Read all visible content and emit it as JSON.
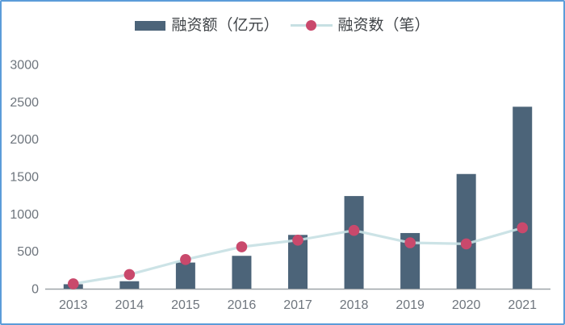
{
  "legend": {
    "bar_label": "融资额（亿元）",
    "line_label": "融资数（笔）"
  },
  "colors": {
    "bar": "#4C6479",
    "line": "#C7E0E3",
    "dot": "#C9496C",
    "axis_line": "#9DA3A8",
    "axis_text": "#6E757D",
    "legend_text": "#414549",
    "border": "#5B9CD9",
    "background": "#FFFFFF"
  },
  "chart_data": {
    "type": "bar",
    "subtype": "bar+line combo",
    "title": "",
    "xlabel": "",
    "ylabel": "",
    "categories": [
      "2013",
      "2014",
      "2015",
      "2016",
      "2017",
      "2018",
      "2019",
      "2020",
      "2021"
    ],
    "series": [
      {
        "name": "融资额（亿元）",
        "type": "bar",
        "values": [
          60,
          100,
          350,
          440,
          720,
          1240,
          745,
          1535,
          2435
        ]
      },
      {
        "name": "融资数（笔）",
        "type": "line",
        "values": [
          65,
          190,
          390,
          560,
          650,
          780,
          615,
          600,
          815
        ]
      }
    ],
    "ylim": [
      0,
      3000
    ],
    "ytick_step": 500,
    "grid": false,
    "legend_position": "top-center"
  }
}
